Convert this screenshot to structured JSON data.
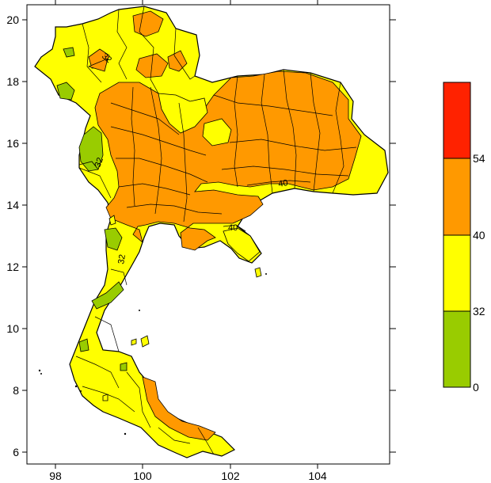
{
  "map": {
    "x_ticks": [
      "98",
      "100",
      "102",
      "104"
    ],
    "y_ticks": [
      "20",
      "18",
      "16",
      "14",
      "12",
      "10",
      "8",
      "6"
    ],
    "contour_labels": [
      "32",
      "40",
      "40",
      "32",
      "32"
    ]
  },
  "legend": {
    "bands": [
      {
        "range": [
          54,
          60
        ],
        "color": "#ff2200"
      },
      {
        "range": [
          40,
          54
        ],
        "color": "#ff9900"
      },
      {
        "range": [
          32,
          40
        ],
        "color": "#ffff00"
      },
      {
        "range": [
          0,
          32
        ],
        "color": "#99cc00"
      }
    ],
    "labels": [
      "54",
      "40",
      "32",
      "0"
    ]
  },
  "colors": {
    "green": "#99cc00",
    "yellow": "#ffff00",
    "orange": "#ff9900",
    "red": "#ff2200",
    "border": "#000000"
  }
}
